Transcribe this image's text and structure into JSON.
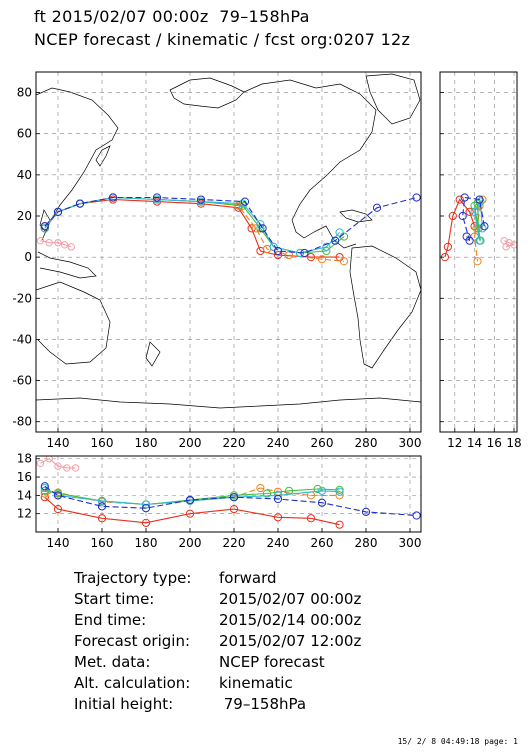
{
  "title_line1": "ft 2015/02/07 00:00z  79–158hPa",
  "title_line2": "NCEP forecast / kinematic / fcst org:0207 12z",
  "info": [
    {
      "label": "Trajectory type:",
      "value": "forward"
    },
    {
      "label": "Start time:",
      "value": "2015/02/07 00:00z"
    },
    {
      "label": "End time:",
      "value": "2015/02/14 00:00z"
    },
    {
      "label": "Forecast origin:",
      "value": "2015/02/07 12:00z"
    },
    {
      "label": "Met. data:",
      "value": "NCEP forecast"
    },
    {
      "label": "Alt. calculation:",
      "value": "kinematic"
    },
    {
      "label": "Initial height:",
      "value": " 79–158hPa"
    }
  ],
  "footer": "15/ 2/ 8 04:49:18 page: 1",
  "colors": {
    "red": "#e8301c",
    "orange": "#f08020",
    "green": "#40c040",
    "cyan": "#30b8d8",
    "blue": "#2030c8",
    "pink": "#f4a0a8"
  },
  "chart_data": [
    {
      "type": "line",
      "title": "ft 2015/02/07 00:00z  79–158hPa",
      "xlabel": "",
      "ylabel": "",
      "xlim": [
        130,
        305
      ],
      "ylim": [
        -85,
        90
      ],
      "x_ticks": [
        140,
        160,
        180,
        200,
        220,
        240,
        260,
        280,
        300
      ],
      "y_ticks": [
        -80,
        -60,
        -40,
        -20,
        0,
        20,
        40,
        60,
        80
      ],
      "grid": true,
      "series": [
        {
          "color": "red",
          "x": [
            134,
            140,
            150,
            165,
            185,
            205,
            222,
            228,
            232,
            240,
            255,
            268
          ],
          "y": [
            15,
            22,
            26,
            28,
            27,
            26,
            24,
            14,
            3,
            1,
            0,
            0
          ]
        },
        {
          "color": "orange",
          "x": [
            134,
            140,
            150,
            165,
            185,
            205,
            222,
            230,
            235,
            245,
            260,
            270
          ],
          "y": [
            14,
            22,
            26,
            29,
            28,
            27,
            25,
            14,
            4,
            1,
            -1,
            -2
          ]
        },
        {
          "color": "green",
          "x": [
            134,
            140,
            150,
            165,
            185,
            205,
            224,
            232,
            238,
            250,
            262,
            270
          ],
          "y": [
            14,
            22,
            26,
            29,
            28,
            27,
            25,
            14,
            5,
            2,
            3,
            10
          ]
        },
        {
          "color": "cyan",
          "x": [
            134,
            140,
            150,
            165,
            185,
            205,
            224,
            232,
            238,
            250,
            262,
            268
          ],
          "y": [
            14,
            22,
            26,
            29,
            28,
            27,
            26,
            16,
            5,
            2,
            5,
            12
          ]
        },
        {
          "color": "blue",
          "x": [
            134,
            140,
            150,
            165,
            185,
            205,
            225,
            233,
            240,
            252,
            266,
            285,
            303
          ],
          "y": [
            15,
            22,
            26,
            29,
            29,
            28,
            27,
            14,
            3,
            2,
            8,
            24,
            29
          ]
        },
        {
          "color": "pink",
          "x": [
            132,
            136,
            140,
            143,
            146
          ],
          "y": [
            8,
            7,
            7,
            6,
            5
          ]
        }
      ]
    },
    {
      "type": "line",
      "title": "",
      "xlim": [
        130,
        305
      ],
      "ylim": [
        10,
        18.3
      ],
      "x_ticks": [
        140,
        160,
        180,
        200,
        220,
        240,
        260,
        280,
        300
      ],
      "y_ticks": [
        12,
        14,
        16,
        18
      ],
      "grid": true,
      "series": [
        {
          "color": "red",
          "x": [
            134,
            140,
            160,
            180,
            200,
            220,
            240,
            255,
            268
          ],
          "y": [
            13.8,
            12.5,
            11.5,
            11.0,
            12.0,
            12.5,
            11.6,
            11.5,
            10.8
          ]
        },
        {
          "color": "orange",
          "x": [
            134,
            140,
            160,
            180,
            200,
            220,
            232,
            240,
            255,
            268
          ],
          "y": [
            14.2,
            14.3,
            13.3,
            13.0,
            13.4,
            13.8,
            14.8,
            14.4,
            14.0,
            14.0
          ]
        },
        {
          "color": "green",
          "x": [
            134,
            140,
            160,
            180,
            200,
            220,
            235,
            245,
            258,
            268
          ],
          "y": [
            14.5,
            14.2,
            13.4,
            13.0,
            13.5,
            14.0,
            14.2,
            14.5,
            14.7,
            14.6
          ]
        },
        {
          "color": "cyan",
          "x": [
            134,
            140,
            160,
            180,
            200,
            220,
            240,
            260,
            268
          ],
          "y": [
            14.8,
            14.0,
            13.4,
            13.0,
            13.4,
            13.8,
            14.0,
            14.5,
            14.4
          ]
        },
        {
          "color": "blue",
          "x": [
            134,
            140,
            160,
            180,
            200,
            220,
            240,
            260,
            280,
            303
          ],
          "y": [
            15.0,
            14.0,
            12.8,
            12.6,
            13.5,
            13.8,
            13.6,
            13.2,
            12.2,
            11.8
          ]
        },
        {
          "color": "pink",
          "x": [
            132,
            136,
            140,
            144,
            148
          ],
          "y": [
            17.5,
            18.0,
            17.2,
            17.0,
            17.0
          ]
        }
      ]
    },
    {
      "type": "line",
      "title": "",
      "xlim": [
        10.5,
        18.3
      ],
      "ylim": [
        -85,
        90
      ],
      "x_ticks": [
        12,
        14,
        16,
        18
      ],
      "y_ticks": [
        -80,
        -60,
        -40,
        -20,
        0,
        20,
        40,
        60,
        80
      ],
      "grid": true,
      "series": [
        {
          "color": "red",
          "x": [
            14.0,
            13.5,
            12.5,
            11.8,
            11.3,
            11.0
          ],
          "y": [
            15,
            22,
            28,
            20,
            5,
            0
          ]
        },
        {
          "color": "orange",
          "x": [
            14.2,
            14.5,
            14.8,
            14.0,
            14.3
          ],
          "y": [
            14,
            25,
            28,
            10,
            -2
          ]
        },
        {
          "color": "green",
          "x": [
            14.4,
            14.3,
            14.0,
            14.6
          ],
          "y": [
            14,
            26,
            25,
            8
          ]
        },
        {
          "color": "cyan",
          "x": [
            14.8,
            14.6,
            14.0,
            14.5
          ],
          "y": [
            14,
            27,
            22,
            8
          ]
        },
        {
          "color": "blue",
          "x": [
            15.0,
            14.5,
            13.0,
            12.8,
            13.5,
            13.2
          ],
          "y": [
            15,
            28,
            29,
            20,
            8,
            10
          ]
        },
        {
          "color": "pink",
          "x": [
            17.0,
            17.5,
            18.0,
            17.2
          ],
          "y": [
            8,
            7,
            6,
            5
          ]
        }
      ]
    }
  ]
}
